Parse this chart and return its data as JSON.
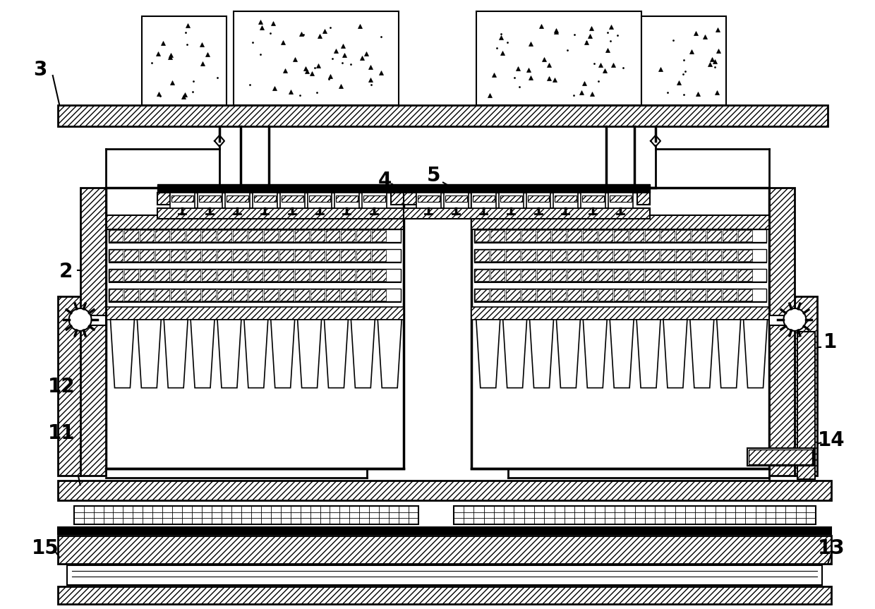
{
  "bg_color": "#ffffff",
  "figsize": [
    12.4,
    8.63
  ],
  "dpi": 100
}
